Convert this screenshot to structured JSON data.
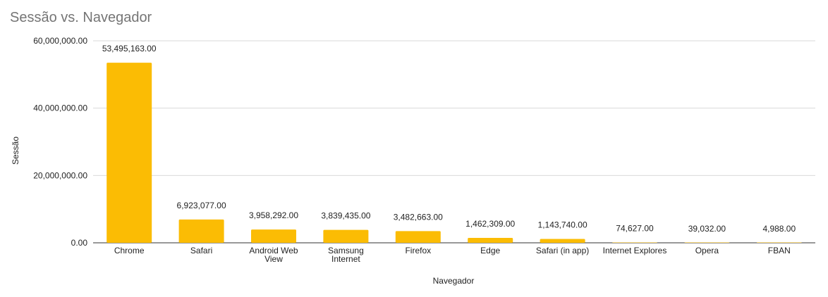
{
  "chart_data": {
    "type": "bar",
    "title": "Sessão vs. Navegador",
    "xlabel": "Navegador",
    "ylabel": "Sessão",
    "ylim": [
      0,
      60000000
    ],
    "yticks": [
      0,
      20000000,
      40000000,
      60000000
    ],
    "ytick_labels": [
      "0.00",
      "20,000,000.00",
      "40,000,000.00",
      "60,000,000.00"
    ],
    "grid": true,
    "legend": "none",
    "bar_color": "#fbbc04",
    "categories": [
      [
        "Chrome"
      ],
      [
        "Safari"
      ],
      [
        "Android Web",
        "View"
      ],
      [
        "Samsung",
        "Internet"
      ],
      [
        "Firefox"
      ],
      [
        "Edge"
      ],
      [
        "Safari (in app)"
      ],
      [
        "Internet Explores"
      ],
      [
        "Opera"
      ],
      [
        "FBAN"
      ]
    ],
    "values": [
      53495163,
      6923077,
      3958292,
      3839435,
      3482663,
      1462309,
      1143740,
      74627,
      39032,
      4988
    ],
    "data_labels": [
      "53,495,163.00",
      "6,923,077.00",
      "3,958,292.00",
      "3,839,435.00",
      "3,482,663.00",
      "1,462,309.00",
      "1,143,740.00",
      "74,627.00",
      "39,032.00",
      "4,988.00"
    ]
  }
}
